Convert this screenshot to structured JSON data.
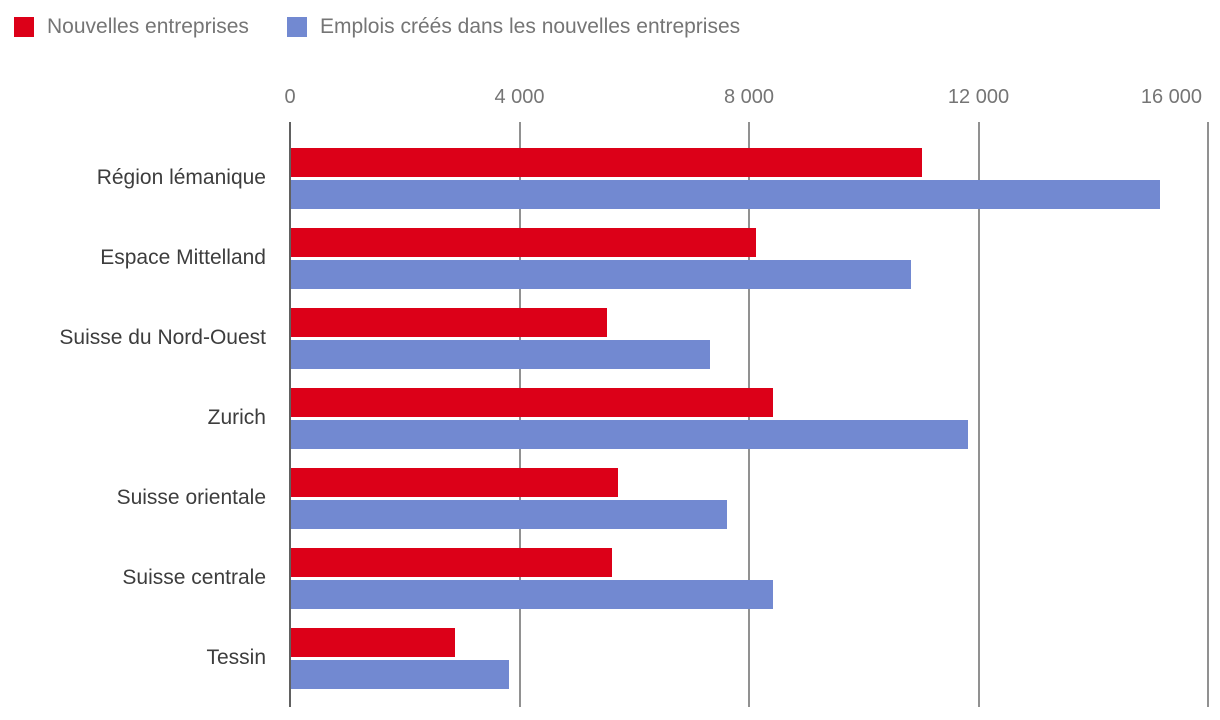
{
  "chart_data": {
    "type": "bar",
    "orientation": "horizontal",
    "title": "",
    "categories": [
      "Région lémanique",
      "Espace Mittelland",
      "Suisse du Nord-Ouest",
      "Zurich",
      "Suisse orientale",
      "Suisse centrale",
      "Tessin"
    ],
    "series": [
      {
        "name": "Nouvelles entreprises",
        "color": "#dc0018",
        "values": [
          11000,
          8100,
          5500,
          8400,
          5700,
          5600,
          2850
        ]
      },
      {
        "name": "Emplois créés dans les nouvelles entreprises",
        "color": "#7289d1",
        "values": [
          15150,
          10800,
          7300,
          11800,
          7600,
          8400,
          3800
        ]
      }
    ],
    "xlim": [
      0,
      16000
    ],
    "xticks": [
      {
        "value": 0,
        "label": "0"
      },
      {
        "value": 4000,
        "label": "4 000"
      },
      {
        "value": 8000,
        "label": "8 000"
      },
      {
        "value": 12000,
        "label": "12 000"
      },
      {
        "value": 16000,
        "label": "16 000"
      }
    ],
    "grid": "vertical",
    "legend_position": "top-left",
    "colors": {
      "axis_line": "#616161",
      "grid_line": "#919191",
      "tick_text": "#757575",
      "category_text": "#3d3d3d",
      "legend_text": "#757575",
      "background": "#ffffff"
    }
  }
}
